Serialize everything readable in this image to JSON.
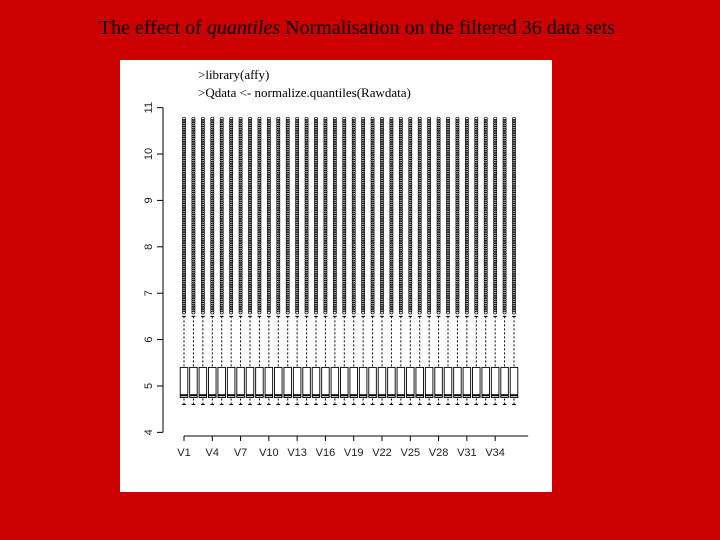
{
  "chart_data": {
    "type": "box",
    "title_parts": [
      "The effect of ",
      "quantiles",
      " Normalisation on the filtered 36 data sets"
    ],
    "code_lines": [
      ">library(affy)",
      ">Qdata <- normalize.quantiles(Rawdata)"
    ],
    "categories": [
      "V1",
      null,
      null,
      "V4",
      null,
      null,
      "V7",
      null,
      null,
      "V10",
      null,
      null,
      "V13",
      null,
      null,
      "V16",
      null,
      null,
      "V19",
      null,
      null,
      "V22",
      null,
      null,
      "V25",
      null,
      null,
      "V28",
      null,
      null,
      "V31",
      null,
      null,
      "V34",
      null,
      null
    ],
    "whislo": [
      4.6,
      4.6,
      4.6,
      4.6,
      4.6,
      4.6,
      4.6,
      4.6,
      4.6,
      4.6,
      4.6,
      4.6,
      4.6,
      4.6,
      4.6,
      4.6,
      4.6,
      4.6,
      4.6,
      4.6,
      4.6,
      4.6,
      4.6,
      4.6,
      4.6,
      4.6,
      4.6,
      4.6,
      4.6,
      4.6,
      4.6,
      4.6,
      4.6,
      4.6,
      4.6,
      4.6
    ],
    "q1": [
      4.75,
      4.75,
      4.75,
      4.75,
      4.75,
      4.75,
      4.75,
      4.75,
      4.75,
      4.75,
      4.75,
      4.75,
      4.75,
      4.75,
      4.75,
      4.75,
      4.75,
      4.75,
      4.75,
      4.75,
      4.75,
      4.75,
      4.75,
      4.75,
      4.75,
      4.75,
      4.75,
      4.75,
      4.75,
      4.75,
      4.75,
      4.75,
      4.75,
      4.75,
      4.75,
      4.75
    ],
    "median": [
      4.8,
      4.8,
      4.8,
      4.8,
      4.8,
      4.8,
      4.8,
      4.8,
      4.8,
      4.8,
      4.8,
      4.8,
      4.8,
      4.8,
      4.8,
      4.8,
      4.8,
      4.8,
      4.8,
      4.8,
      4.8,
      4.8,
      4.8,
      4.8,
      4.8,
      4.8,
      4.8,
      4.8,
      4.8,
      4.8,
      4.8,
      4.8,
      4.8,
      4.8,
      4.8,
      4.8
    ],
    "q3": [
      5.4,
      5.4,
      5.4,
      5.4,
      5.4,
      5.4,
      5.4,
      5.4,
      5.4,
      5.4,
      5.4,
      5.4,
      5.4,
      5.4,
      5.4,
      5.4,
      5.4,
      5.4,
      5.4,
      5.4,
      5.4,
      5.4,
      5.4,
      5.4,
      5.4,
      5.4,
      5.4,
      5.4,
      5.4,
      5.4,
      5.4,
      5.4,
      5.4,
      5.4,
      5.4,
      5.4
    ],
    "whishi": [
      6.5,
      6.5,
      6.5,
      6.5,
      6.5,
      6.5,
      6.5,
      6.5,
      6.5,
      6.5,
      6.5,
      6.5,
      6.5,
      6.5,
      6.5,
      6.5,
      6.5,
      6.5,
      6.5,
      6.5,
      6.5,
      6.5,
      6.5,
      6.5,
      6.5,
      6.5,
      6.5,
      6.5,
      6.5,
      6.5,
      6.5,
      6.5,
      6.5,
      6.5,
      6.5,
      6.5
    ],
    "flier_max": [
      10.8,
      10.8,
      10.8,
      10.8,
      10.8,
      10.8,
      10.8,
      10.8,
      10.8,
      10.8,
      10.8,
      10.8,
      10.8,
      10.8,
      10.8,
      10.8,
      10.8,
      10.8,
      10.8,
      10.8,
      10.8,
      10.8,
      10.8,
      10.8,
      10.8,
      10.8,
      10.8,
      10.8,
      10.8,
      10.8,
      10.8,
      10.8,
      10.8,
      10.8,
      10.8,
      10.8
    ],
    "ylim": [
      3.9,
      11.1
    ],
    "yticks": [
      4,
      5,
      6,
      7,
      8,
      9,
      10,
      11
    ]
  }
}
